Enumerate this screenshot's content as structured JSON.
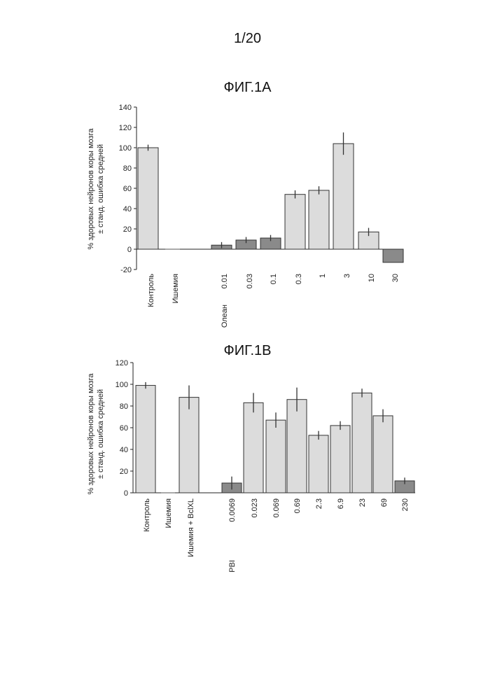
{
  "page": {
    "number": "1/20"
  },
  "chart_data": [
    {
      "type": "bar",
      "title": "ФИГ.1А",
      "ylabel": [
        "% здоровых нейронов коры мозга",
        "± станд. ошибка средней"
      ],
      "ylim": [
        -20,
        140
      ],
      "yticks": [
        -20,
        0,
        20,
        40,
        60,
        80,
        100,
        120,
        140
      ],
      "categories": [
        "Контроль",
        "Ишемия",
        "Олеан 0.01",
        "0.03",
        "0.1",
        "0.3",
        "1",
        "3",
        "10",
        "30"
      ],
      "labels": [
        "Контроль",
        "Ишемия",
        "Олеан",
        "0.01",
        "0.03",
        "0.1",
        "0.3",
        "1",
        "3",
        "10",
        "30"
      ],
      "values": [
        100,
        0,
        4,
        9,
        11,
        54,
        58,
        104,
        17,
        -13
      ],
      "errors": [
        3,
        0,
        3,
        3,
        3,
        4,
        4,
        11,
        4,
        0
      ],
      "grid": false,
      "legend": "none"
    },
    {
      "type": "bar",
      "title": "ФИГ.1В",
      "ylabel": [
        "% здоровых нейронов коры мозга",
        "± станд. ошибка средней"
      ],
      "ylim": [
        0,
        120
      ],
      "yticks": [
        0,
        20,
        40,
        60,
        80,
        100,
        120
      ],
      "categories": [
        "Контроль",
        "Ишемия",
        "Ишемия + BclXL",
        "PBI 0.0069",
        "0.023",
        "0.069",
        "0.69",
        "2.3",
        "6.9",
        "23",
        "69",
        "230"
      ],
      "labels": [
        "Контроль",
        "Ишемия",
        "Ишемия + BclXL",
        "PBI",
        "0.0069",
        "0.023",
        "0.069",
        "0.69",
        "2.3",
        "6.9",
        "23",
        "69",
        "230"
      ],
      "values": [
        99,
        0,
        88,
        9,
        83,
        67,
        86,
        53,
        62,
        92,
        71,
        11
      ],
      "errors": [
        3,
        0,
        11,
        6,
        9,
        7,
        11,
        4,
        4,
        4,
        6,
        3
      ],
      "grid": false,
      "legend": "none"
    }
  ]
}
